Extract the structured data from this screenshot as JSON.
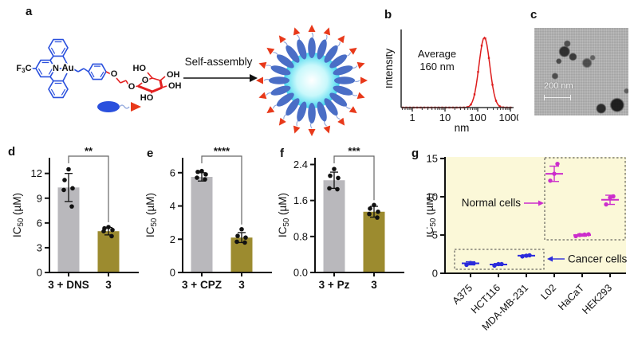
{
  "figure": {
    "panel_labels": {
      "a": "a",
      "b": "b",
      "c": "c",
      "d": "d",
      "e": "e",
      "f": "f",
      "g": "g"
    }
  },
  "panel_a": {
    "arrow_label": "Self-assembly",
    "atoms": {
      "f3c_parts": [
        "F",
        "3",
        "C"
      ],
      "n": "N",
      "au": "Au",
      "o_ether": "O",
      "o_chain": "O",
      "o_ring": "O",
      "ho_top": "HO",
      "oh_top": "OH",
      "oh_right": "OH",
      "ho_bottom": "HO"
    },
    "colors": {
      "complex_blue": "#2a50dd",
      "glyco_red": "#e32020",
      "micelle_body": "#4a6ec6",
      "micelle_core_edge": "#44d6ee",
      "tail_red": "#e8391a"
    }
  },
  "panel_c": {
    "scale_bar": "200 nm"
  },
  "chart_data": [
    {
      "id": "b_dls",
      "type": "line",
      "x_scale": "log",
      "xlabel": "nm",
      "ylabel": "Intensity",
      "x_ticks": [
        1,
        10,
        100,
        1000
      ],
      "x_range": [
        0.45,
        1000
      ],
      "annotation_lines": [
        "Average",
        "160 nm"
      ],
      "peak_nm": 160,
      "peak_sigma_decades": 0.165,
      "color": "#dd1c1c"
    },
    {
      "id": "d_ic50_dns",
      "type": "bar",
      "categories": [
        "3 + DNS",
        "3"
      ],
      "values": [
        10.3,
        5.0
      ],
      "errors": [
        1.7,
        0.45
      ],
      "points": [
        [
          12.5,
          11.2,
          10.2,
          10.0,
          8.0
        ],
        [
          5.5,
          5.35,
          5.15,
          5.0,
          4.4
        ]
      ],
      "ylabel": "IC50 (µM)",
      "ylabel_parts": [
        "IC",
        "50",
        " (µM)"
      ],
      "ytick_labels": [
        "0",
        "3",
        "6",
        "9",
        "12"
      ],
      "ytick_values": [
        0,
        3,
        6,
        9,
        12
      ],
      "axis_max": 13.9,
      "significance": "**",
      "bar_colors": [
        "#b9b8bc",
        "#9c8b2f"
      ]
    },
    {
      "id": "e_ic50_cpz",
      "type": "bar",
      "categories": [
        "3 + CPZ",
        "3"
      ],
      "values": [
        5.75,
        2.1
      ],
      "errors": [
        0.25,
        0.3
      ],
      "points": [
        [
          6.1,
          6.05,
          5.9,
          5.7,
          5.6
        ],
        [
          2.6,
          2.2,
          2.1,
          1.85,
          1.8
        ]
      ],
      "ylabel": "IC50 (µM)",
      "ylabel_parts": [
        "IC",
        "50",
        " (µM)"
      ],
      "ytick_labels": [
        "0",
        "2",
        "4",
        "6"
      ],
      "ytick_values": [
        0,
        2,
        4,
        6
      ],
      "axis_max": 6.9,
      "significance": "****",
      "bar_colors": [
        "#b9b8bc",
        "#9c8b2f"
      ]
    },
    {
      "id": "f_ic50_pz",
      "type": "bar",
      "categories": [
        "3 + Pz",
        "3"
      ],
      "values": [
        2.05,
        1.35
      ],
      "errors": [
        0.18,
        0.12
      ],
      "points": [
        [
          2.3,
          2.15,
          2.1,
          1.87,
          1.85
        ],
        [
          1.5,
          1.42,
          1.35,
          1.3,
          1.22
        ]
      ],
      "ylabel": "IC50 (µM)",
      "ylabel_parts": [
        "IC",
        "50",
        " (µM)"
      ],
      "ytick_labels": [
        "0.0",
        "0.8",
        "1.6",
        "2.4"
      ],
      "ytick_values": [
        0,
        0.8,
        1.6,
        2.4
      ],
      "axis_max": 2.55,
      "significance": "***",
      "bar_colors": [
        "#b9b8bc",
        "#9c8b2f"
      ]
    },
    {
      "id": "g_cell_panel",
      "type": "scatter",
      "ylabel": "IC50 (µM)",
      "ylabel_parts": [
        "IC",
        "50",
        " (µM)"
      ],
      "ytick_labels": [
        "0",
        "5",
        "10",
        "15"
      ],
      "ytick_values": [
        0,
        5,
        10,
        15
      ],
      "axis_max": 15.2,
      "background": "#fbf8d8",
      "groups": {
        "cancer": {
          "label": "Cancer cells",
          "color": "#2b2bdb"
        },
        "normal": {
          "label": "Normal cells",
          "color": "#cc2ecc"
        }
      },
      "series": [
        {
          "name": "A375",
          "group": "cancer",
          "mean": 1.3,
          "err": 0.2,
          "points": [
            1.1,
            1.35,
            1.3
          ]
        },
        {
          "name": "HCT116",
          "group": "cancer",
          "mean": 1.15,
          "err": 0.12,
          "points": [
            1.0,
            1.2,
            1.2
          ]
        },
        {
          "name": "MDA-MB-231",
          "group": "cancer",
          "mean": 2.3,
          "err": 0.1,
          "points": [
            2.2,
            2.3,
            2.35
          ]
        },
        {
          "name": "L02",
          "group": "normal",
          "mean": 13.0,
          "err": 1.0,
          "points": [
            12.1,
            13.0,
            14.3
          ]
        },
        {
          "name": "HaCaT",
          "group": "normal",
          "mean": 5.0,
          "err": 0.15,
          "points": [
            4.85,
            5.0,
            5.05,
            5.1
          ]
        },
        {
          "name": "HEK293",
          "group": "normal",
          "mean": 9.6,
          "err": 0.6,
          "points": [
            9.0,
            9.9,
            10.05
          ]
        }
      ]
    }
  ]
}
